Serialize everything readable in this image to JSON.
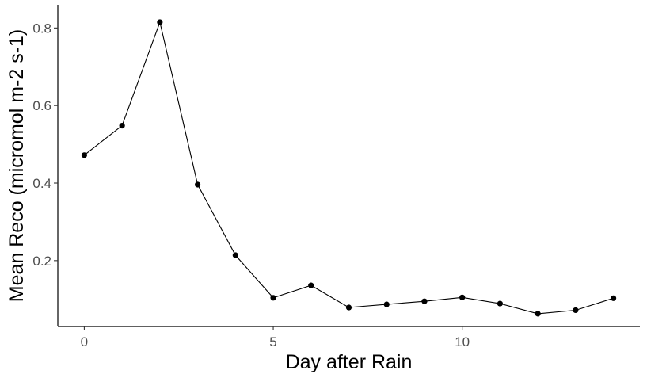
{
  "chart_data": {
    "type": "line",
    "xlabel": "Day after Rain",
    "ylabel": "Mean Reco (micromol m-2 s-1)",
    "xlim": [
      -0.7,
      14.7
    ],
    "ylim": [
      0.03,
      0.86
    ],
    "xticks": [
      0,
      5,
      10
    ],
    "yticks": [
      0.2,
      0.4,
      0.6,
      0.8
    ],
    "xtick_labels": [
      "0",
      "5",
      "10"
    ],
    "ytick_labels": [
      "0.2",
      "0.4",
      "0.6",
      "0.8"
    ],
    "grid": false,
    "legend": "none",
    "series": [
      {
        "color": "#000000",
        "markers": true,
        "x": [
          0,
          1,
          2,
          3,
          4,
          5,
          6,
          7,
          8,
          9,
          10,
          11,
          12,
          13,
          14
        ],
        "y": [
          0.472,
          0.548,
          0.815,
          0.396,
          0.214,
          0.104,
          0.136,
          0.079,
          0.087,
          0.095,
          0.105,
          0.089,
          0.063,
          0.072,
          0.103
        ]
      }
    ]
  }
}
